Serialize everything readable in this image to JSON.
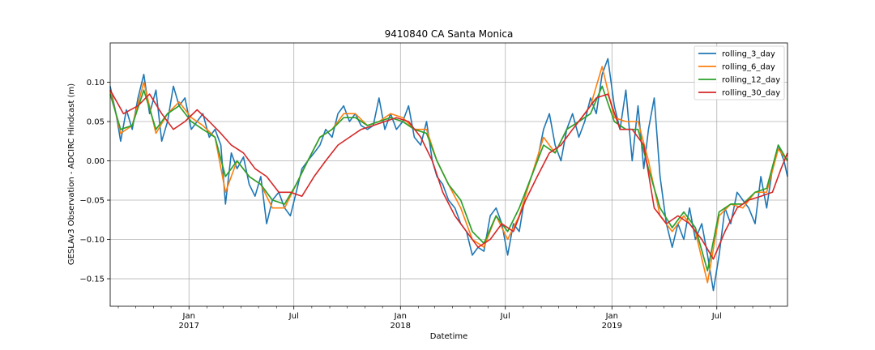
{
  "chart_data": {
    "type": "line",
    "title": "9410840 CA Santa Monica",
    "xlabel": "Datetime",
    "ylabel": "GESLAv3 Observation - ADCIRC Hindcast (m)",
    "xlim": [
      "2016-08-18",
      "2019-10-31"
    ],
    "ylim": [
      -0.185,
      0.15
    ],
    "grid": true,
    "legend_position": "top-right",
    "y_ticks": [
      {
        "value": 0.1,
        "label": "0.10"
      },
      {
        "value": 0.05,
        "label": "0.05"
      },
      {
        "value": 0.0,
        "label": "0.00"
      },
      {
        "value": -0.05,
        "label": "−0.05"
      },
      {
        "value": -0.1,
        "label": "−0.10"
      },
      {
        "value": -0.15,
        "label": "−0.15"
      }
    ],
    "x_major_ticks": [
      {
        "date": "2017-01-01",
        "label": "Jan",
        "year": "2017"
      },
      {
        "date": "2017-07-01",
        "label": "Jul",
        "year": ""
      },
      {
        "date": "2018-01-01",
        "label": "Jan",
        "year": "2018"
      },
      {
        "date": "2018-07-01",
        "label": "Jul",
        "year": ""
      },
      {
        "date": "2019-01-01",
        "label": "Jan",
        "year": "2019"
      },
      {
        "date": "2019-07-01",
        "label": "Jul",
        "year": ""
      }
    ],
    "x_minor_ticks": [
      "2016-09-01",
      "2016-10-01",
      "2016-11-01",
      "2016-12-01",
      "2017-02-01",
      "2017-03-01",
      "2017-04-01",
      "2017-05-01",
      "2017-06-01",
      "2017-08-01",
      "2017-09-01",
      "2017-10-01",
      "2017-11-01",
      "2017-12-01",
      "2018-02-01",
      "2018-03-01",
      "2018-04-01",
      "2018-05-01",
      "2018-06-01",
      "2018-08-01",
      "2018-09-01",
      "2018-10-01",
      "2018-11-01",
      "2018-12-01",
      "2019-02-01",
      "2019-03-01",
      "2019-04-01",
      "2019-05-01",
      "2019-06-01",
      "2019-08-01",
      "2019-09-01",
      "2019-10-01"
    ],
    "series": [
      {
        "name": "rolling_3_day",
        "color": "#1f77b4",
        "x": [
          "2016-08-18",
          "2016-08-28",
          "2016-09-05",
          "2016-09-15",
          "2016-09-25",
          "2016-10-05",
          "2016-10-15",
          "2016-10-25",
          "2016-11-05",
          "2016-11-15",
          "2016-11-25",
          "2016-12-05",
          "2016-12-15",
          "2016-12-25",
          "2017-01-05",
          "2017-01-15",
          "2017-01-25",
          "2017-02-05",
          "2017-02-15",
          "2017-02-25",
          "2017-03-05",
          "2017-03-15",
          "2017-03-25",
          "2017-04-05",
          "2017-04-15",
          "2017-04-25",
          "2017-05-05",
          "2017-05-15",
          "2017-05-25",
          "2017-06-05",
          "2017-06-15",
          "2017-06-25",
          "2017-07-05",
          "2017-07-15",
          "2017-07-25",
          "2017-08-05",
          "2017-08-15",
          "2017-08-25",
          "2017-09-05",
          "2017-09-15",
          "2017-09-25",
          "2017-10-05",
          "2017-10-15",
          "2017-10-25",
          "2017-11-05",
          "2017-11-15",
          "2017-11-25",
          "2017-12-05",
          "2017-12-15",
          "2017-12-25",
          "2018-01-05",
          "2018-01-15",
          "2018-01-25",
          "2018-02-05",
          "2018-02-15",
          "2018-02-25",
          "2018-03-05",
          "2018-03-15",
          "2018-03-25",
          "2018-04-05",
          "2018-04-15",
          "2018-04-25",
          "2018-05-05",
          "2018-05-15",
          "2018-05-25",
          "2018-06-05",
          "2018-06-15",
          "2018-06-25",
          "2018-07-05",
          "2018-07-15",
          "2018-07-25",
          "2018-08-05",
          "2018-08-15",
          "2018-08-25",
          "2018-09-05",
          "2018-09-15",
          "2018-09-25",
          "2018-10-05",
          "2018-10-15",
          "2018-10-25",
          "2018-11-05",
          "2018-11-15",
          "2018-11-25",
          "2018-12-05",
          "2018-12-15",
          "2018-12-25",
          "2019-01-05",
          "2019-01-15",
          "2019-01-25",
          "2019-02-05",
          "2019-02-15",
          "2019-02-25",
          "2019-03-05",
          "2019-03-15",
          "2019-03-25",
          "2019-04-05",
          "2019-04-15",
          "2019-04-25",
          "2019-05-05",
          "2019-05-15",
          "2019-05-25",
          "2019-06-05",
          "2019-06-15",
          "2019-06-25",
          "2019-07-05",
          "2019-07-15",
          "2019-07-25",
          "2019-08-05",
          "2019-08-15",
          "2019-08-25",
          "2019-09-05",
          "2019-09-15",
          "2019-09-25",
          "2019-10-05",
          "2019-10-15",
          "2019-10-25",
          "2019-10-31"
        ],
        "values": [
          0.095,
          0.06,
          0.025,
          0.065,
          0.04,
          0.08,
          0.11,
          0.06,
          0.09,
          0.025,
          0.05,
          0.095,
          0.07,
          0.08,
          0.04,
          0.05,
          0.06,
          0.03,
          0.04,
          0.02,
          -0.055,
          0.01,
          -0.01,
          0.005,
          -0.03,
          -0.045,
          -0.02,
          -0.08,
          -0.05,
          -0.04,
          -0.06,
          -0.07,
          -0.04,
          -0.01,
          0.0,
          0.01,
          0.02,
          0.04,
          0.03,
          0.06,
          0.07,
          0.05,
          0.06,
          0.045,
          0.04,
          0.045,
          0.08,
          0.04,
          0.06,
          0.04,
          0.05,
          0.07,
          0.03,
          0.02,
          0.05,
          0.0,
          -0.02,
          -0.03,
          -0.05,
          -0.06,
          -0.08,
          -0.09,
          -0.12,
          -0.11,
          -0.115,
          -0.07,
          -0.06,
          -0.08,
          -0.12,
          -0.08,
          -0.09,
          -0.04,
          -0.02,
          0.0,
          0.04,
          0.06,
          0.02,
          0.0,
          0.04,
          0.06,
          0.03,
          0.05,
          0.08,
          0.06,
          0.11,
          0.13,
          0.07,
          0.04,
          0.09,
          0.0,
          0.07,
          -0.01,
          0.04,
          0.08,
          -0.02,
          -0.08,
          -0.11,
          -0.08,
          -0.1,
          -0.06,
          -0.1,
          -0.08,
          -0.12,
          -0.165,
          -0.12,
          -0.06,
          -0.08,
          -0.04,
          -0.05,
          -0.06,
          -0.08,
          -0.02,
          -0.06,
          -0.01,
          0.02,
          0.0,
          -0.02
        ]
      },
      {
        "name": "rolling_6_day",
        "color": "#ff7f0e",
        "x": [
          "2016-08-18",
          "2016-09-05",
          "2016-09-25",
          "2016-10-15",
          "2016-11-05",
          "2016-11-25",
          "2016-12-15",
          "2017-01-05",
          "2017-01-25",
          "2017-02-15",
          "2017-03-05",
          "2017-03-25",
          "2017-04-15",
          "2017-05-05",
          "2017-05-25",
          "2017-06-15",
          "2017-07-05",
          "2017-07-25",
          "2017-08-15",
          "2017-09-05",
          "2017-09-25",
          "2017-10-15",
          "2017-11-05",
          "2017-11-25",
          "2017-12-15",
          "2018-01-05",
          "2018-01-25",
          "2018-02-15",
          "2018-03-05",
          "2018-03-25",
          "2018-04-15",
          "2018-05-05",
          "2018-05-25",
          "2018-06-15",
          "2018-07-05",
          "2018-07-25",
          "2018-08-15",
          "2018-09-05",
          "2018-09-25",
          "2018-10-15",
          "2018-11-05",
          "2018-11-25",
          "2018-12-15",
          "2019-01-05",
          "2019-01-25",
          "2019-02-15",
          "2019-03-05",
          "2019-03-25",
          "2019-04-15",
          "2019-05-05",
          "2019-05-25",
          "2019-06-15",
          "2019-07-05",
          "2019-07-25",
          "2019-08-15",
          "2019-09-05",
          "2019-09-25",
          "2019-10-15",
          "2019-10-31"
        ],
        "values": [
          0.09,
          0.035,
          0.045,
          0.1,
          0.035,
          0.06,
          0.075,
          0.055,
          0.045,
          0.03,
          -0.04,
          0.0,
          -0.02,
          -0.03,
          -0.06,
          -0.06,
          -0.03,
          0.0,
          0.03,
          0.04,
          0.06,
          0.06,
          0.045,
          0.05,
          0.06,
          0.055,
          0.04,
          0.04,
          0.0,
          -0.03,
          -0.06,
          -0.1,
          -0.11,
          -0.07,
          -0.1,
          -0.07,
          -0.02,
          0.03,
          0.01,
          0.04,
          0.05,
          0.07,
          0.12,
          0.055,
          0.05,
          0.05,
          0.0,
          -0.07,
          -0.09,
          -0.07,
          -0.09,
          -0.155,
          -0.07,
          -0.055,
          -0.06,
          -0.04,
          -0.04,
          0.015,
          0.0
        ]
      },
      {
        "name": "rolling_12_day",
        "color": "#2ca02c",
        "x": [
          "2016-08-18",
          "2016-09-05",
          "2016-09-25",
          "2016-10-15",
          "2016-11-05",
          "2016-11-25",
          "2016-12-15",
          "2017-01-05",
          "2017-01-25",
          "2017-02-15",
          "2017-03-05",
          "2017-03-25",
          "2017-04-15",
          "2017-05-05",
          "2017-05-25",
          "2017-06-15",
          "2017-07-05",
          "2017-07-25",
          "2017-08-15",
          "2017-09-05",
          "2017-09-25",
          "2017-10-15",
          "2017-11-05",
          "2017-11-25",
          "2017-12-15",
          "2018-01-05",
          "2018-01-25",
          "2018-02-15",
          "2018-03-05",
          "2018-03-25",
          "2018-04-15",
          "2018-05-05",
          "2018-05-25",
          "2018-06-15",
          "2018-07-05",
          "2018-07-25",
          "2018-08-15",
          "2018-09-05",
          "2018-09-25",
          "2018-10-15",
          "2018-11-05",
          "2018-11-25",
          "2018-12-15",
          "2019-01-05",
          "2019-01-25",
          "2019-02-15",
          "2019-03-05",
          "2019-03-25",
          "2019-04-15",
          "2019-05-05",
          "2019-05-25",
          "2019-06-15",
          "2019-07-05",
          "2019-07-25",
          "2019-08-15",
          "2019-09-05",
          "2019-09-25",
          "2019-10-15",
          "2019-10-31"
        ],
        "values": [
          0.085,
          0.04,
          0.045,
          0.09,
          0.04,
          0.06,
          0.07,
          0.05,
          0.04,
          0.03,
          -0.02,
          0.0,
          -0.02,
          -0.03,
          -0.05,
          -0.055,
          -0.03,
          0.0,
          0.03,
          0.04,
          0.055,
          0.055,
          0.045,
          0.05,
          0.055,
          0.05,
          0.04,
          0.035,
          0.0,
          -0.03,
          -0.05,
          -0.09,
          -0.105,
          -0.07,
          -0.09,
          -0.06,
          -0.02,
          0.02,
          0.01,
          0.04,
          0.05,
          0.06,
          0.095,
          0.05,
          0.04,
          0.04,
          -0.01,
          -0.06,
          -0.085,
          -0.065,
          -0.085,
          -0.14,
          -0.065,
          -0.055,
          -0.055,
          -0.04,
          -0.035,
          0.02,
          0.0
        ]
      },
      {
        "name": "rolling_30_day",
        "color": "#d62728",
        "x": [
          "2016-08-18",
          "2016-09-10",
          "2016-10-05",
          "2016-10-25",
          "2016-11-15",
          "2016-12-05",
          "2016-12-25",
          "2017-01-15",
          "2017-02-05",
          "2017-02-25",
          "2017-03-15",
          "2017-04-05",
          "2017-04-25",
          "2017-05-15",
          "2017-06-05",
          "2017-06-25",
          "2017-07-15",
          "2017-08-05",
          "2017-08-25",
          "2017-09-15",
          "2017-10-05",
          "2017-10-25",
          "2017-11-15",
          "2017-12-05",
          "2017-12-25",
          "2018-01-15",
          "2018-02-05",
          "2018-02-25",
          "2018-03-15",
          "2018-04-05",
          "2018-04-25",
          "2018-05-15",
          "2018-06-05",
          "2018-06-25",
          "2018-07-15",
          "2018-08-05",
          "2018-08-25",
          "2018-09-15",
          "2018-10-05",
          "2018-10-25",
          "2018-11-15",
          "2018-12-05",
          "2018-12-25",
          "2019-01-15",
          "2019-02-05",
          "2019-02-25",
          "2019-03-15",
          "2019-04-05",
          "2019-04-25",
          "2019-05-15",
          "2019-06-05",
          "2019-06-25",
          "2019-07-15",
          "2019-08-05",
          "2019-08-25",
          "2019-09-15",
          "2019-10-05",
          "2019-10-20",
          "2019-10-31"
        ],
        "values": [
          0.09,
          0.06,
          0.07,
          0.085,
          0.06,
          0.04,
          0.05,
          0.065,
          0.05,
          0.035,
          0.02,
          0.01,
          -0.01,
          -0.02,
          -0.04,
          -0.04,
          -0.045,
          -0.02,
          0.0,
          0.02,
          0.03,
          0.04,
          0.045,
          0.05,
          0.055,
          0.05,
          0.03,
          0.0,
          -0.04,
          -0.07,
          -0.09,
          -0.11,
          -0.1,
          -0.08,
          -0.09,
          -0.05,
          -0.02,
          0.01,
          0.02,
          0.04,
          0.06,
          0.08,
          0.085,
          0.04,
          0.04,
          0.02,
          -0.06,
          -0.08,
          -0.07,
          -0.08,
          -0.1,
          -0.125,
          -0.09,
          -0.06,
          -0.05,
          -0.045,
          -0.04,
          -0.01,
          0.01
        ]
      }
    ]
  }
}
